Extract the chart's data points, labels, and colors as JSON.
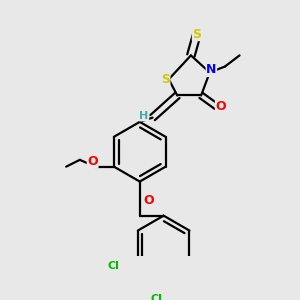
{
  "background_color": "#e8e8e8",
  "atom_colors": {
    "S": "#cccc00",
    "N": "#0000ff",
    "O": "#ff0000",
    "Cl": "#00bb00",
    "C": "#000000",
    "H": "#44aaaa"
  },
  "bond_color": "#000000",
  "bond_width": 1.6,
  "fig_size": [
    3.0,
    3.0
  ],
  "dpi": 100
}
